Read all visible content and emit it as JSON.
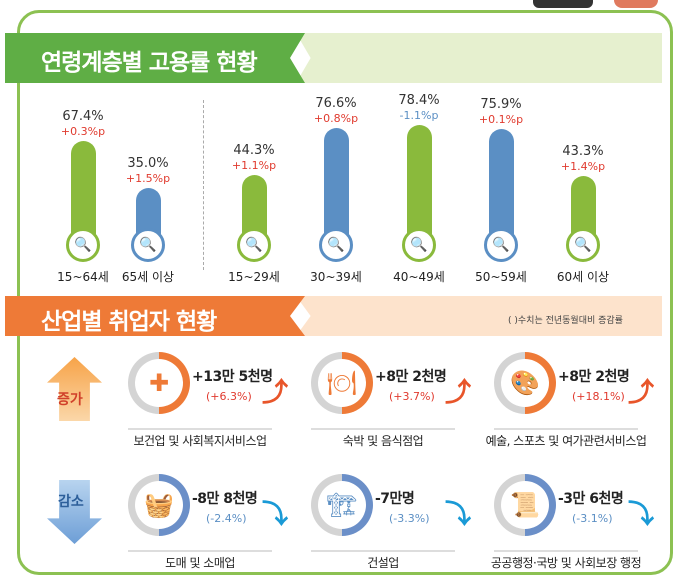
{
  "section1": {
    "title": "연령계층별 고용률 현황",
    "groups": [
      {
        "age": "15~64세",
        "value": "67.4%",
        "change": "+0.3%p",
        "num": 67.4,
        "dir": "up",
        "color": "#8aba3c"
      },
      {
        "age": "65세 이상",
        "value": "35.0%",
        "change": "+1.5%p",
        "num": 35.0,
        "dir": "up",
        "color": "#5b8fc4"
      },
      {
        "age": "15~29세",
        "value": "44.3%",
        "change": "+1.1%p",
        "num": 44.3,
        "dir": "up",
        "color": "#8aba3c"
      },
      {
        "age": "30~39세",
        "value": "76.6%",
        "change": "+0.8%p",
        "num": 76.6,
        "dir": "up",
        "color": "#5b8fc4"
      },
      {
        "age": "40~49세",
        "value": "78.4%",
        "change": "-1.1%p",
        "num": 78.4,
        "dir": "down",
        "color": "#8aba3c"
      },
      {
        "age": "50~59세",
        "value": "75.9%",
        "change": "+0.1%p",
        "num": 75.9,
        "dir": "up",
        "color": "#5b8fc4"
      },
      {
        "age": "60세 이상",
        "value": "43.3%",
        "change": "+1.4%p",
        "num": 43.3,
        "dir": "up",
        "color": "#8aba3c"
      }
    ]
  },
  "section2": {
    "title": "산업별 취업자 현황",
    "note": "( )수치는 전년동월대비 증감률",
    "increase_label": "증가",
    "decrease_label": "감소",
    "increase": [
      {
        "value": "+13만 5천명",
        "pct": "(+6.3%)",
        "label": "보건업 및 사회복지서비스업",
        "icon": "first-aid-kit-icon",
        "glyph": "✚"
      },
      {
        "value": "+8만 2천명",
        "pct": "(+3.7%)",
        "label": "숙박 및 음식점업",
        "icon": "plate-cutlery-icon",
        "glyph": "🍽"
      },
      {
        "value": "+8만 2천명",
        "pct": "(+18.1%)",
        "label": "예술, 스포츠 및 여가관련서비스업",
        "icon": "palette-icon",
        "glyph": "🎨"
      }
    ],
    "decrease": [
      {
        "value": "-8만 8천명",
        "pct": "(-2.4%)",
        "label": "도매 및 소매업",
        "icon": "basket-icon",
        "glyph": "🧺"
      },
      {
        "value": "-7만명",
        "pct": "(-3.3%)",
        "label": "건설업",
        "icon": "excavator-icon",
        "glyph": "🏗"
      },
      {
        "value": "-3만 6천명",
        "pct": "(-3.1%)",
        "label": "공공행정·국방 및 사회보장 행정",
        "icon": "scroll-icon",
        "glyph": "📜"
      }
    ]
  },
  "colors": {
    "green": "#8aba3c",
    "blue": "#5b8fc4",
    "orange": "#ee7a37",
    "red": "#e03a2e",
    "down": "#1a9ad6"
  }
}
